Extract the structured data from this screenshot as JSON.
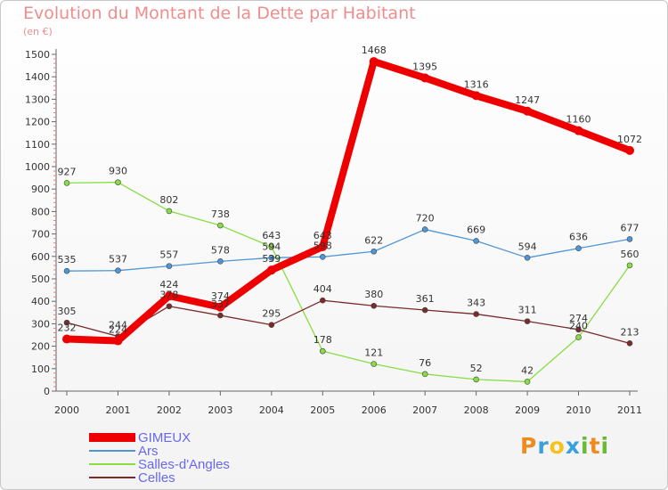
{
  "header": {
    "title": "Evolution du Montant de la Dette par Habitant",
    "subtitle": "(en €)"
  },
  "brand": {
    "letters": [
      "P",
      "r",
      "o",
      "x",
      "i",
      "t",
      "i"
    ],
    "colors": [
      "#f08a1c",
      "#3aa0da",
      "#f4c21a",
      "#3aa0da",
      "#66bb33",
      "#f08a1c",
      "#66bb33"
    ]
  },
  "chart_data": {
    "type": "line",
    "title": "Evolution du Montant de la Dette par Habitant",
    "subtitle": "(en €)",
    "xlabel": "",
    "ylabel": "",
    "x": [
      "2000",
      "2001",
      "2002",
      "2003",
      "2004",
      "2005",
      "2006",
      "2007",
      "2008",
      "2009",
      "2010",
      "2011"
    ],
    "ylim": [
      0,
      1500
    ],
    "yticks": [
      "0",
      "100",
      "200",
      "300",
      "400",
      "500",
      "600",
      "700",
      "800",
      "900",
      "1000",
      "1100",
      "1200",
      "1300",
      "1400",
      "1500"
    ],
    "grid": false,
    "legend_position": "bottom-left",
    "series": [
      {
        "name": "GIMEUX",
        "color": "#ee0000",
        "values": [
          232,
          224,
          424,
          374,
          539,
          643,
          1468,
          1395,
          1316,
          1247,
          1160,
          1072
        ],
        "labels": [
          "232",
          "224",
          "424",
          "374",
          "539",
          "643",
          "1468",
          "1395",
          "1316",
          "1247",
          "1160",
          "1072"
        ]
      },
      {
        "name": "Ars",
        "color": "#4f96d6",
        "values": [
          535,
          537,
          557,
          578,
          594,
          598,
          622,
          720,
          669,
          594,
          636,
          677
        ],
        "labels": [
          "535",
          "537",
          "557",
          "578",
          "594",
          "598",
          "622",
          "720",
          "669",
          "594",
          "636",
          "677"
        ]
      },
      {
        "name": "Salles-d'Angles",
        "color": "#88dd44",
        "values": [
          927,
          930,
          802,
          738,
          643,
          178,
          121,
          76,
          52,
          42,
          240,
          560
        ],
        "labels": [
          "927",
          "930",
          "802",
          "738",
          "643",
          "178",
          "121",
          "76",
          "52",
          "42",
          "240",
          "560"
        ]
      },
      {
        "name": "Celles",
        "color": "#7a2b2b",
        "values": [
          305,
          244,
          378,
          337,
          295,
          404,
          380,
          361,
          343,
          311,
          274,
          213
        ],
        "labels": [
          "305",
          "244",
          "378",
          "337",
          "295",
          "404",
          "380",
          "361",
          "343",
          "311",
          "274",
          "213"
        ]
      }
    ]
  }
}
